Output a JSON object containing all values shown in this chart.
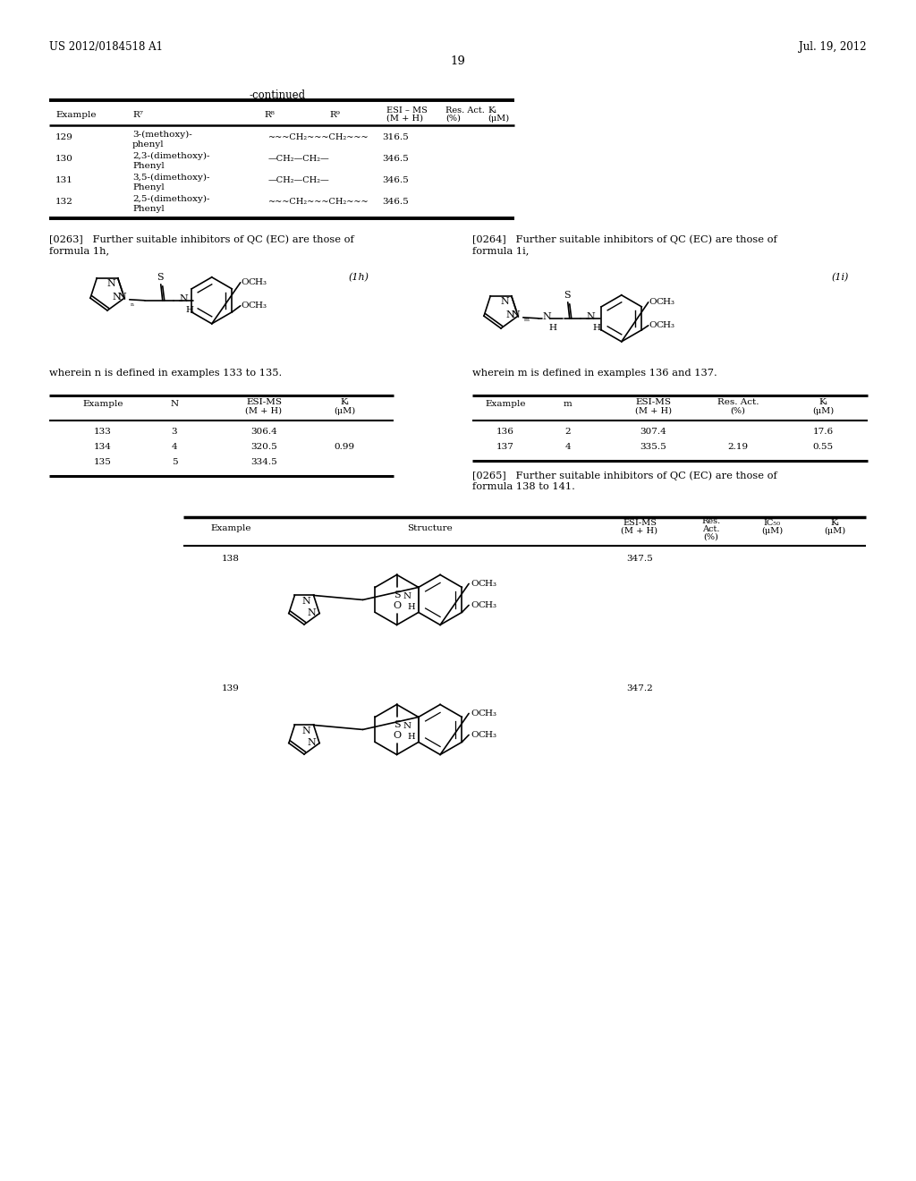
{
  "bg_color": "#ffffff",
  "header_left": "US 2012/0184518 A1",
  "header_right": "Jul. 19, 2012",
  "page_number": "19",
  "continued_label": "-continued",
  "top_table_rows": [
    [
      "129",
      "3-(methoxy)-\nphenyl",
      "~~~CH₂~~~CH₂~~~",
      "316.5"
    ],
    [
      "130",
      "2,3-(dimethoxy)-\nPhenyl",
      "—CH₂—CH₂—",
      "346.5"
    ],
    [
      "131",
      "3,5-(dimethoxy)-\nPhenyl",
      "—CH₂—CH₂—",
      "346.5"
    ],
    [
      "132",
      "2,5-(dimethoxy)-\nPhenyl",
      "~~~CH₂~~~CH₂~~~",
      "346.5"
    ]
  ],
  "para_263_line1": "[0263]   Further suitable inhibitors of QC (EC) are those of",
  "para_263_line2": "formula 1h,",
  "para_264_line1": "[0264]   Further suitable inhibitors of QC (EC) are those of",
  "para_264_line2": "formula 1i,",
  "formula_1h": "(1h)",
  "formula_1i": "(1i)",
  "wherein_n": "wherein n is defined in examples 133 to 135.",
  "wherein_m": "wherein m is defined in examples 136 and 137.",
  "table133_rows": [
    [
      "133",
      "3",
      "306.4",
      ""
    ],
    [
      "134",
      "4",
      "320.5",
      "0.99"
    ],
    [
      "135",
      "5",
      "334.5",
      ""
    ]
  ],
  "table136_rows": [
    [
      "136",
      "2",
      "307.4",
      "",
      "17.6"
    ],
    [
      "137",
      "4",
      "335.5",
      "2.19",
      "0.55"
    ]
  ],
  "para_265_line1": "[0265]   Further suitable inhibitors of QC (EC) are those of",
  "para_265_line2": "formula 138 to 141.",
  "bottom_rows": [
    [
      "138",
      "347.5"
    ],
    [
      "139",
      "347.2"
    ]
  ]
}
